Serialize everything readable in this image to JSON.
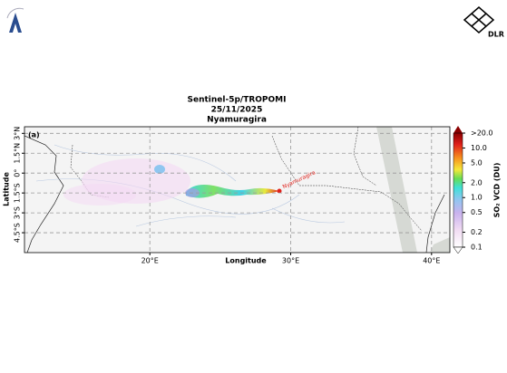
{
  "logo_text": "DLR",
  "map": {
    "title": [
      "Sentinel-5p/TROPOMI",
      "25/11/2025",
      "Nyamuragira"
    ],
    "panel_label": "(a)",
    "volcano_label": "Nyamuragira",
    "x_label": "Longitude",
    "y_label": "Latitude",
    "xlim": [
      11.1,
      41.3
    ],
    "ylim": [
      -6.0,
      3.5
    ],
    "xticks": [
      {
        "value": 20,
        "label": "20°E"
      },
      {
        "value": 30,
        "label": "30°E"
      },
      {
        "value": 40,
        "label": "40°E"
      }
    ],
    "yticks": [
      {
        "value": 3,
        "label": "3°N"
      },
      {
        "value": 1.5,
        "label": "1.5°N"
      },
      {
        "value": 0,
        "label": "0°"
      },
      {
        "value": -1.5,
        "label": "1.5°S"
      },
      {
        "value": -3,
        "label": "3°S"
      },
      {
        "value": -4.5,
        "label": "4.5°S"
      }
    ],
    "grid": true,
    "colorbar": {
      "label": "SO₂ VCD (DU)",
      "scale": "log",
      "lim": [
        0.1,
        20
      ],
      "ticks": [
        {
          "value": 20,
          "label": ">20.0"
        },
        {
          "value": 10,
          "label": "10.0"
        },
        {
          "value": 5,
          "label": "5.0"
        },
        {
          "value": 2,
          "label": "2.0"
        },
        {
          "value": 1,
          "label": "1.0"
        },
        {
          "value": 0.5,
          "label": "0.5"
        },
        {
          "value": 0.2,
          "label": "0.2"
        },
        {
          "value": 0.1,
          "label": "0.1"
        }
      ]
    }
  }
}
